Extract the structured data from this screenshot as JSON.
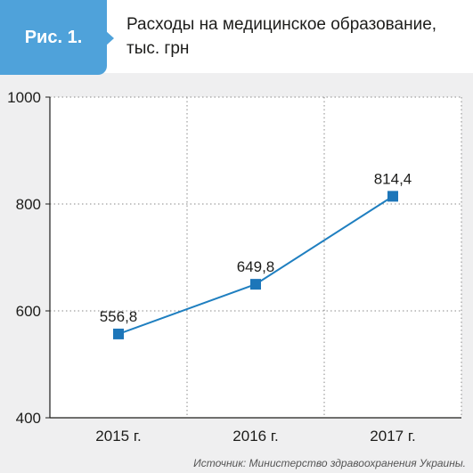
{
  "figure": {
    "label": "Рис. 1.",
    "title": "Расходы на медицинское образование, тыс. грн",
    "source": "Источник: Министерство здравоохранения Украины."
  },
  "colors": {
    "accent": "#4fa2da",
    "line": "#1f7fc0",
    "marker": "#1d76b9",
    "background": "#efeff0"
  },
  "chart_data": {
    "type": "line",
    "title": "Расходы на медицинское образование, тыс. грн",
    "xlabel": "",
    "ylabel": "",
    "categories": [
      "2015 г.",
      "2016 г.",
      "2017 г."
    ],
    "series": [
      {
        "values": [
          556.8,
          649.8,
          814.4
        ],
        "labels": [
          "556,8",
          "649,8",
          "814,4"
        ]
      }
    ],
    "ylim": [
      400,
      1000
    ],
    "yticks": [
      400,
      600,
      800,
      1000
    ],
    "ytick_labels": [
      "400",
      "600",
      "800",
      "1000"
    ],
    "grid": true,
    "legend": "none"
  }
}
